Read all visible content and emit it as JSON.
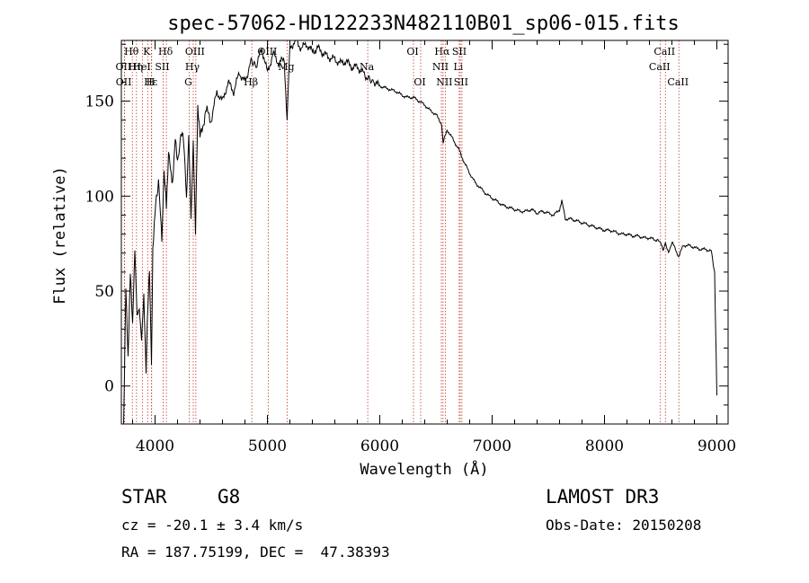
{
  "chart_data": {
    "type": "line",
    "title": "spec-57062-HD122233N482110B01_sp06-015.fits",
    "xlabel": "Wavelength (Å)",
    "ylabel": "Flux (relative)",
    "xlim": [
      3700,
      9100
    ],
    "ylim": [
      -20,
      182
    ],
    "xticks": [
      4000,
      5000,
      6000,
      7000,
      8000,
      9000
    ],
    "xtick_labels": [
      "4000",
      "5000",
      "6000",
      "7000",
      "8000",
      "9000"
    ],
    "yticks": [
      0,
      50,
      100,
      150
    ],
    "ytick_labels": [
      "0",
      "50",
      "100",
      "150"
    ],
    "grid": false,
    "series": [
      {
        "name": "spectrum",
        "x": [
          3720,
          3740,
          3760,
          3780,
          3800,
          3820,
          3840,
          3860,
          3880,
          3900,
          3920,
          3935,
          3950,
          3968,
          3980,
          4000,
          4030,
          4060,
          4080,
          4101,
          4120,
          4150,
          4180,
          4200,
          4230,
          4260,
          4280,
          4300,
          4320,
          4340,
          4360,
          4380,
          4400,
          4450,
          4500,
          4550,
          4600,
          4650,
          4700,
          4750,
          4800,
          4861,
          4900,
          4950,
          5000,
          5050,
          5100,
          5150,
          5175,
          5200,
          5250,
          5300,
          5350,
          5400,
          5450,
          5500,
          5550,
          5600,
          5650,
          5700,
          5750,
          5800,
          5850,
          5893,
          5950,
          6000,
          6050,
          6100,
          6150,
          6200,
          6250,
          6300,
          6350,
          6400,
          6450,
          6500,
          6550,
          6563,
          6600,
          6650,
          6700,
          6750,
          6800,
          6850,
          6900,
          6950,
          7000,
          7050,
          7100,
          7150,
          7200,
          7250,
          7300,
          7350,
          7400,
          7450,
          7500,
          7550,
          7600,
          7620,
          7650,
          7700,
          7750,
          7800,
          7850,
          7900,
          7950,
          8000,
          8050,
          8100,
          8150,
          8200,
          8250,
          8300,
          8350,
          8400,
          8450,
          8498,
          8520,
          8542,
          8570,
          8600,
          8662,
          8700,
          8750,
          8800,
          8850,
          8900,
          8950,
          8980,
          9000
        ],
        "values": [
          -20,
          55,
          15,
          60,
          30,
          70,
          35,
          40,
          25,
          50,
          10,
          40,
          60,
          15,
          70,
          90,
          110,
          75,
          115,
          95,
          125,
          105,
          130,
          115,
          135,
          125,
          100,
          135,
          90,
          130,
          80,
          145,
          130,
          145,
          140,
          155,
          150,
          160,
          155,
          165,
          160,
          172,
          168,
          178,
          165,
          175,
          170,
          172,
          140,
          178,
          182,
          178,
          180,
          176,
          178,
          175,
          173,
          172,
          170,
          171,
          168,
          168,
          165,
          162,
          160,
          158,
          157,
          156,
          155,
          153,
          152,
          152,
          150,
          148,
          145,
          143,
          138,
          128,
          135,
          130,
          125,
          118,
          112,
          107,
          104,
          101,
          99,
          97,
          95,
          94,
          93,
          92,
          92,
          93,
          91,
          92,
          91,
          90,
          93,
          98,
          88,
          88,
          87,
          86,
          85,
          84,
          83,
          82,
          82,
          81,
          80,
          80,
          79,
          79,
          78,
          78,
          77,
          76,
          72,
          75,
          70,
          76,
          68,
          74,
          74,
          73,
          72,
          72,
          71,
          60,
          -5
        ]
      }
    ],
    "line_markers": [
      {
        "label": "Hθ",
        "wavelength": 3798,
        "row": 0
      },
      {
        "label": "K",
        "wavelength": 3934,
        "row": 0
      },
      {
        "label": "Hδ",
        "wavelength": 4101,
        "row": 0
      },
      {
        "label": "OIII",
        "wavelength": 4363,
        "row": 0
      },
      {
        "label": "OIII",
        "wavelength": 5007,
        "row": 0
      },
      {
        "label": "OI",
        "wavelength": 6300,
        "row": 0
      },
      {
        "label": "Hα",
        "wavelength": 6563,
        "row": 0
      },
      {
        "label": "SII",
        "wavelength": 6716,
        "row": 0
      },
      {
        "label": "CaII",
        "wavelength": 8542,
        "row": 0
      },
      {
        "label": "OII",
        "wavelength": 3727,
        "row": 1
      },
      {
        "label": "Hη",
        "wavelength": 3835,
        "row": 1
      },
      {
        "label": "HeI",
        "wavelength": 3889,
        "row": 1
      },
      {
        "label": "SII",
        "wavelength": 4072,
        "row": 1
      },
      {
        "label": "Hγ",
        "wavelength": 4340,
        "row": 1
      },
      {
        "label": "Mg",
        "wavelength": 5175,
        "row": 1
      },
      {
        "label": "Na",
        "wavelength": 5893,
        "row": 1
      },
      {
        "label": "NII",
        "wavelength": 6548,
        "row": 1
      },
      {
        "label": "Li",
        "wavelength": 6707,
        "row": 1
      },
      {
        "label": "CaII",
        "wavelength": 8498,
        "row": 1
      },
      {
        "label": "OII",
        "wavelength": 3729,
        "row": 2
      },
      {
        "label": "Hε",
        "wavelength": 3970,
        "row": 2
      },
      {
        "label": "H",
        "wavelength": 3968,
        "row": 2
      },
      {
        "label": "G",
        "wavelength": 4304,
        "row": 2
      },
      {
        "label": "Hβ",
        "wavelength": 4861,
        "row": 2
      },
      {
        "label": "OI",
        "wavelength": 6364,
        "row": 2
      },
      {
        "label": "NII",
        "wavelength": 6583,
        "row": 2
      },
      {
        "label": "SII",
        "wavelength": 6731,
        "row": 2
      },
      {
        "label": "CaII",
        "wavelength": 8662,
        "row": 2
      }
    ]
  },
  "info": {
    "object_class": "STAR",
    "subclass": "G8",
    "survey": "LAMOST DR3",
    "redshift": "cz = -20.1 ± 3.4 km/s",
    "obs_date": "Obs-Date: 20150208",
    "coords": "RA = 187.75199, DEC =  47.38393"
  },
  "colors": {
    "line_marker": "#c0392b",
    "spectrum": "#000000"
  }
}
